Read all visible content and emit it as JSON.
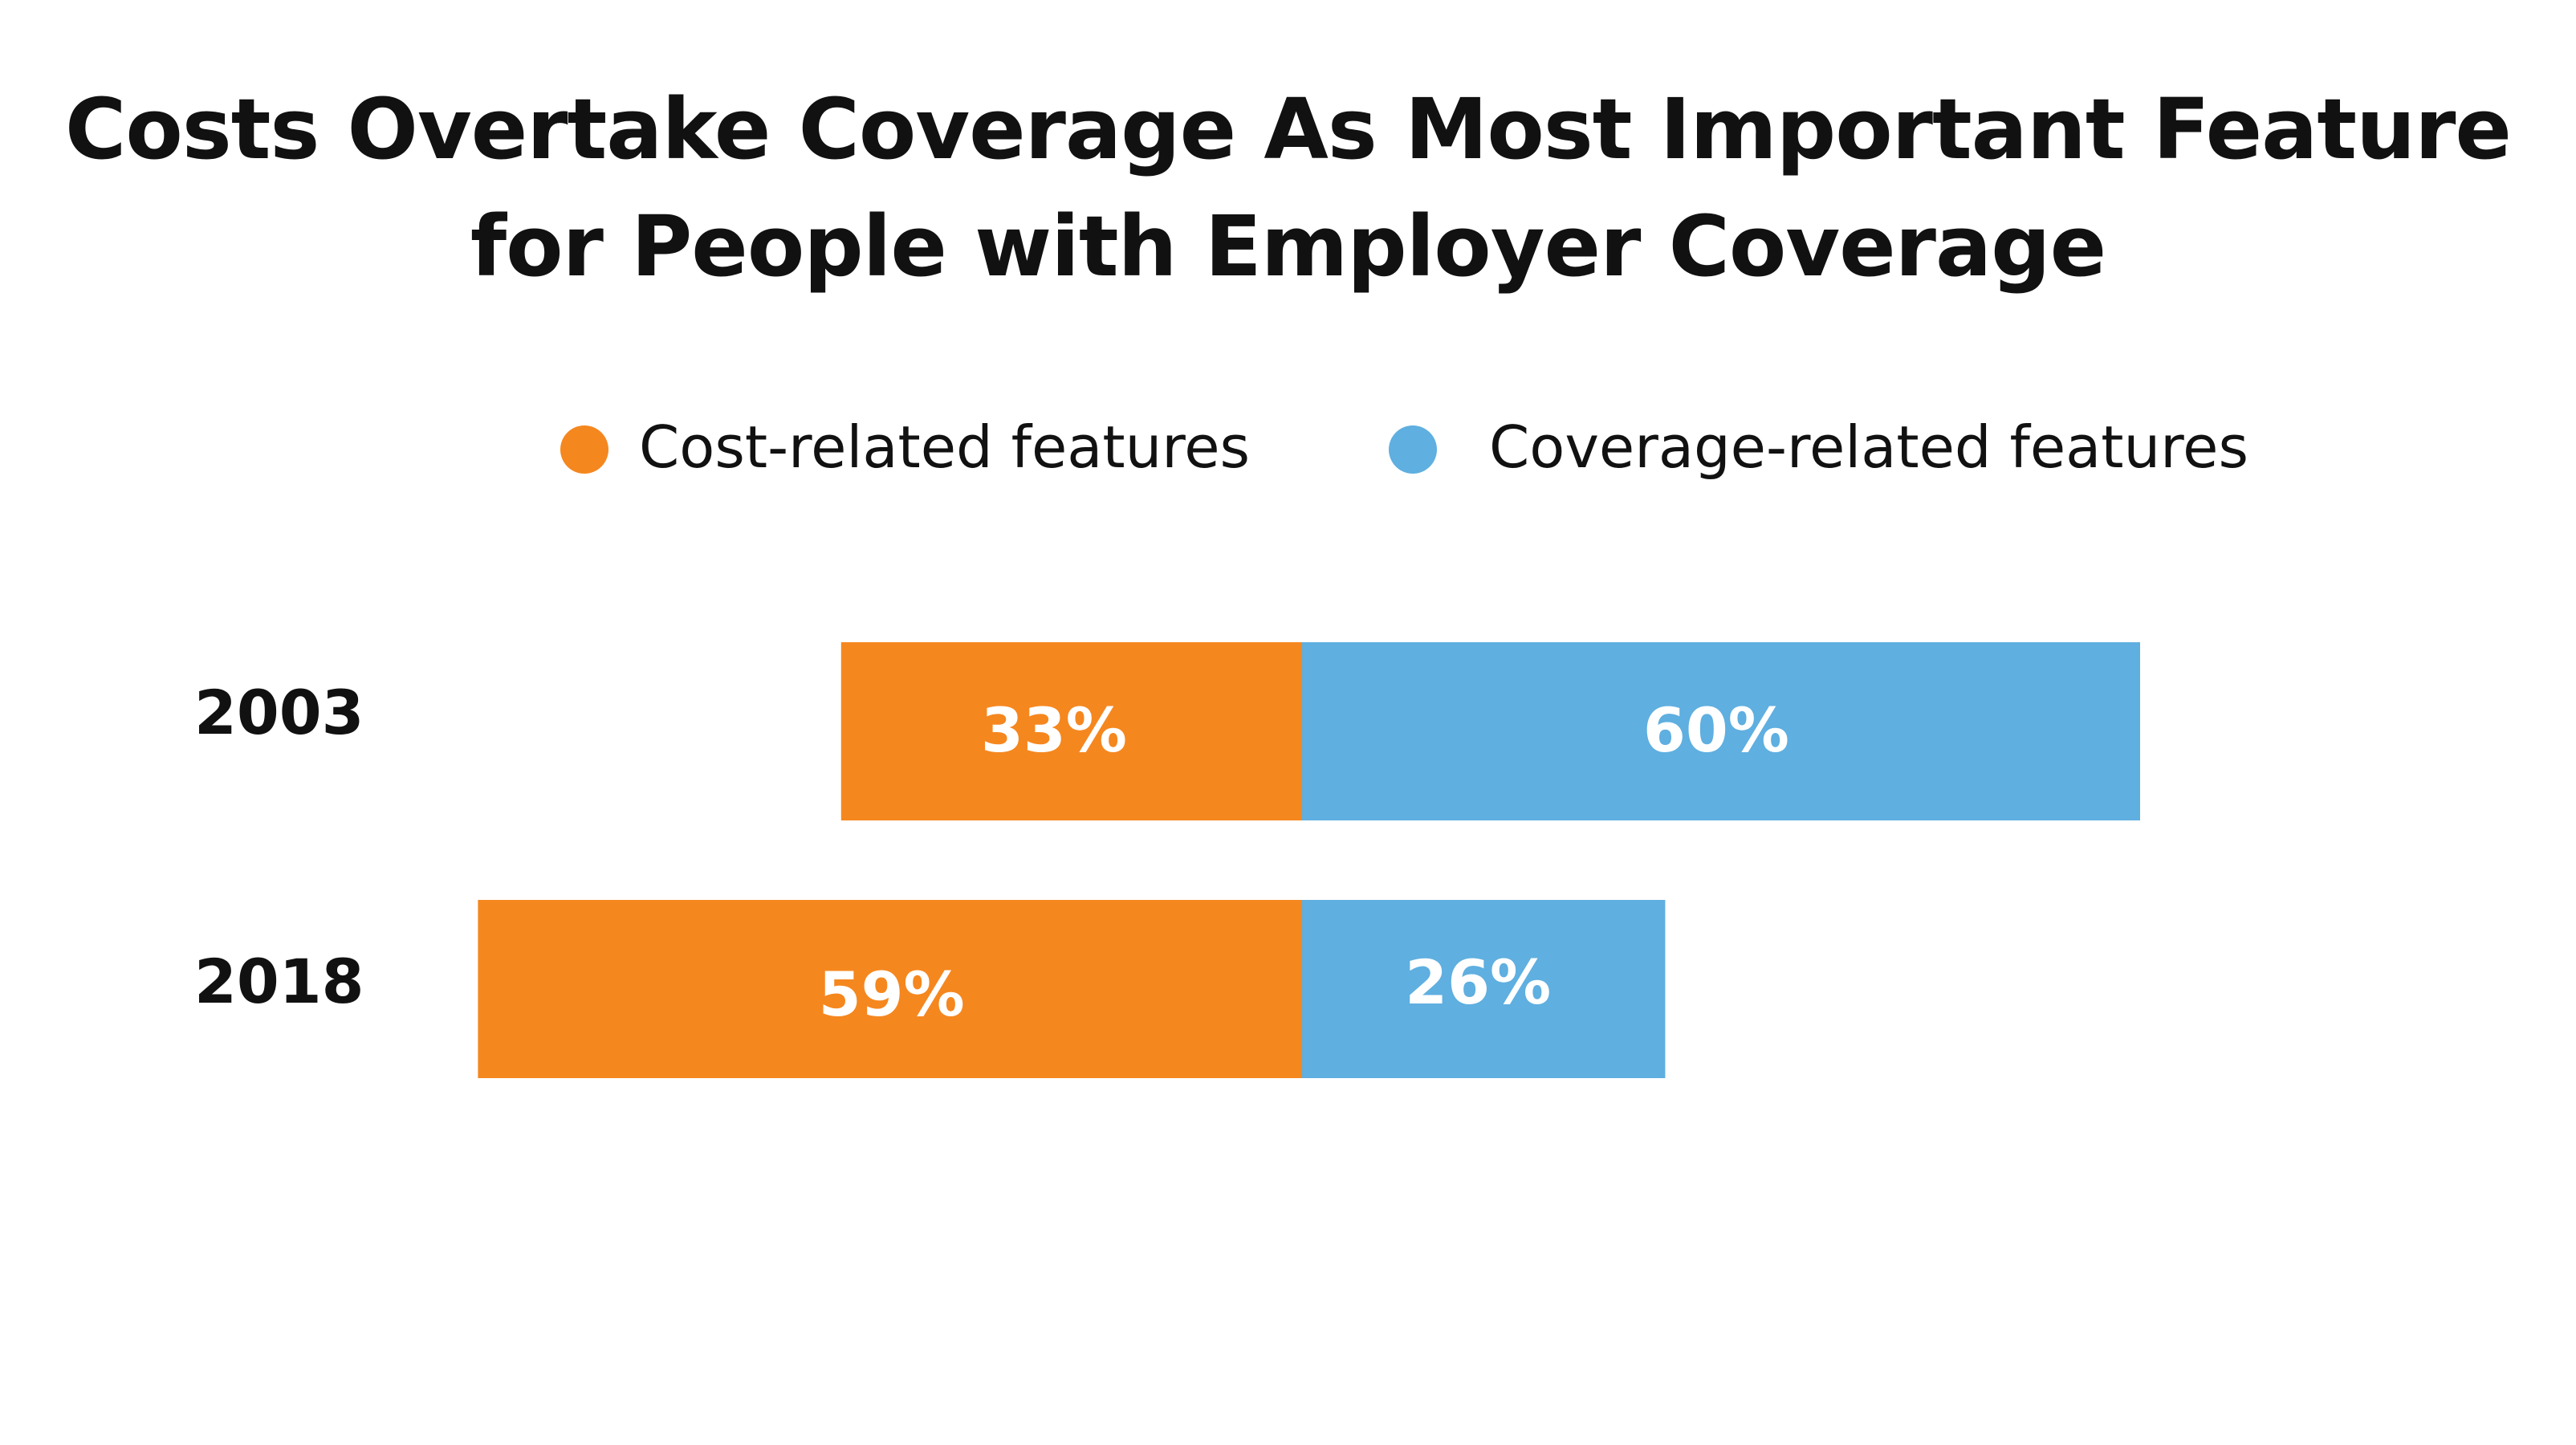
{
  "chart_data": {
    "type": "bar",
    "orientation": "horizontal",
    "stacked": "diverging",
    "title": [
      "Costs Overtake Coverage As Most Important Feature",
      "for People with Employer Coverage"
    ],
    "categories": [
      "2003",
      "2018"
    ],
    "series": [
      {
        "name": "Cost-related features",
        "values": [
          33,
          59
        ],
        "labels": [
          "33%",
          "59%"
        ],
        "color": "#f5871f"
      },
      {
        "name": "Coverage-related features",
        "values": [
          60,
          26
        ],
        "labels": [
          "60%",
          "26%"
        ],
        "color": "#5fafe0"
      }
    ],
    "legend": "top-center",
    "grid": false,
    "xlabel": "",
    "ylabel": ""
  }
}
